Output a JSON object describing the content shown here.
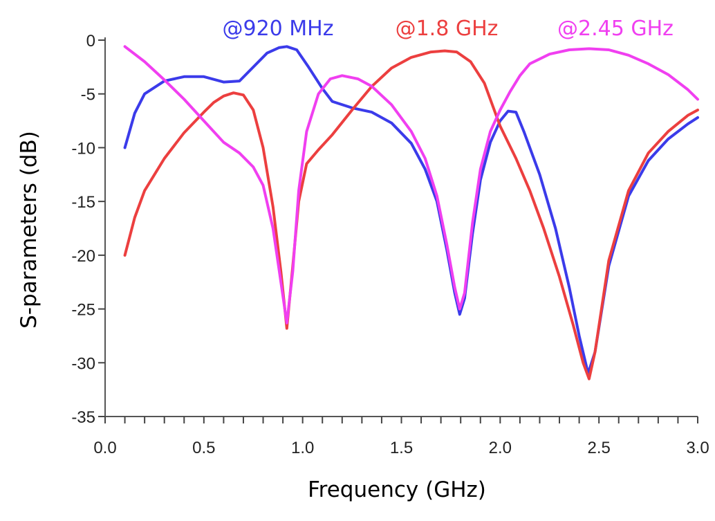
{
  "chart_data": {
    "type": "line",
    "title": "",
    "xlabel": "Frequency (GHz)",
    "ylabel": "S-parameters (dB)",
    "xlim": [
      0.0,
      3.0
    ],
    "ylim": [
      -35,
      0
    ],
    "xticks": [
      "0.0",
      "0.5",
      "1.0",
      "1.5",
      "2.0",
      "2.5",
      "3.0"
    ],
    "yticks": [
      "0",
      "-5",
      "-10",
      "-15",
      "-20",
      "-25",
      "-30",
      "-35"
    ],
    "grid": false,
    "legend_position": "top",
    "series": [
      {
        "name": "@920 MHz",
        "color": "#3b3bea",
        "points": [
          [
            0.1,
            -10.0
          ],
          [
            0.15,
            -6.8
          ],
          [
            0.2,
            -5.0
          ],
          [
            0.3,
            -3.8
          ],
          [
            0.4,
            -3.4
          ],
          [
            0.5,
            -3.4
          ],
          [
            0.6,
            -3.9
          ],
          [
            0.68,
            -3.8
          ],
          [
            0.75,
            -2.5
          ],
          [
            0.82,
            -1.2
          ],
          [
            0.88,
            -0.7
          ],
          [
            0.92,
            -0.6
          ],
          [
            0.97,
            -0.9
          ],
          [
            1.03,
            -2.5
          ],
          [
            1.1,
            -4.5
          ],
          [
            1.15,
            -5.7
          ],
          [
            1.25,
            -6.3
          ],
          [
            1.35,
            -6.7
          ],
          [
            1.45,
            -7.7
          ],
          [
            1.55,
            -9.6
          ],
          [
            1.62,
            -12.0
          ],
          [
            1.68,
            -15.0
          ],
          [
            1.73,
            -19.5
          ],
          [
            1.77,
            -23.5
          ],
          [
            1.795,
            -25.5
          ],
          [
            1.82,
            -24.0
          ],
          [
            1.86,
            -18.0
          ],
          [
            1.9,
            -13.0
          ],
          [
            1.95,
            -9.5
          ],
          [
            2.0,
            -7.5
          ],
          [
            2.04,
            -6.6
          ],
          [
            2.08,
            -6.7
          ],
          [
            2.12,
            -8.5
          ],
          [
            2.2,
            -12.5
          ],
          [
            2.28,
            -17.5
          ],
          [
            2.35,
            -23.0
          ],
          [
            2.4,
            -27.5
          ],
          [
            2.445,
            -31.0
          ],
          [
            2.48,
            -29.0
          ],
          [
            2.55,
            -21.0
          ],
          [
            2.65,
            -14.5
          ],
          [
            2.75,
            -11.2
          ],
          [
            2.85,
            -9.2
          ],
          [
            2.95,
            -7.8
          ],
          [
            3.0,
            -7.2
          ]
        ]
      },
      {
        "name": "@1.8 GHz",
        "color": "#ec3f3f",
        "points": [
          [
            0.1,
            -20.0
          ],
          [
            0.15,
            -16.5
          ],
          [
            0.2,
            -14.0
          ],
          [
            0.3,
            -11.0
          ],
          [
            0.4,
            -8.6
          ],
          [
            0.5,
            -6.7
          ],
          [
            0.55,
            -5.8
          ],
          [
            0.6,
            -5.2
          ],
          [
            0.65,
            -4.9
          ],
          [
            0.7,
            -5.1
          ],
          [
            0.75,
            -6.5
          ],
          [
            0.8,
            -10.0
          ],
          [
            0.85,
            -15.5
          ],
          [
            0.89,
            -21.5
          ],
          [
            0.92,
            -26.8
          ],
          [
            0.95,
            -21.0
          ],
          [
            0.98,
            -15.0
          ],
          [
            1.02,
            -11.5
          ],
          [
            1.08,
            -10.2
          ],
          [
            1.15,
            -8.8
          ],
          [
            1.25,
            -6.5
          ],
          [
            1.35,
            -4.3
          ],
          [
            1.45,
            -2.6
          ],
          [
            1.55,
            -1.6
          ],
          [
            1.65,
            -1.1
          ],
          [
            1.72,
            -1.0
          ],
          [
            1.78,
            -1.1
          ],
          [
            1.85,
            -2.0
          ],
          [
            1.92,
            -4.0
          ],
          [
            2.0,
            -8.0
          ],
          [
            2.08,
            -11.0
          ],
          [
            2.15,
            -14.0
          ],
          [
            2.22,
            -17.5
          ],
          [
            2.3,
            -22.0
          ],
          [
            2.37,
            -26.5
          ],
          [
            2.42,
            -30.0
          ],
          [
            2.45,
            -31.5
          ],
          [
            2.48,
            -29.0
          ],
          [
            2.55,
            -20.5
          ],
          [
            2.65,
            -14.0
          ],
          [
            2.75,
            -10.5
          ],
          [
            2.85,
            -8.5
          ],
          [
            2.95,
            -7.0
          ],
          [
            3.0,
            -6.5
          ]
        ]
      },
      {
        "name": "@2.45 GHz",
        "color": "#f03ff0",
        "points": [
          [
            0.1,
            -0.6
          ],
          [
            0.2,
            -2.0
          ],
          [
            0.3,
            -3.7
          ],
          [
            0.4,
            -5.5
          ],
          [
            0.5,
            -7.5
          ],
          [
            0.6,
            -9.5
          ],
          [
            0.68,
            -10.5
          ],
          [
            0.75,
            -11.8
          ],
          [
            0.8,
            -13.5
          ],
          [
            0.85,
            -17.5
          ],
          [
            0.89,
            -22.5
          ],
          [
            0.92,
            -26.3
          ],
          [
            0.95,
            -21.5
          ],
          [
            0.98,
            -14.0
          ],
          [
            1.02,
            -8.5
          ],
          [
            1.08,
            -5.0
          ],
          [
            1.14,
            -3.6
          ],
          [
            1.2,
            -3.3
          ],
          [
            1.28,
            -3.6
          ],
          [
            1.35,
            -4.3
          ],
          [
            1.45,
            -6.0
          ],
          [
            1.55,
            -8.5
          ],
          [
            1.62,
            -11.0
          ],
          [
            1.68,
            -14.5
          ],
          [
            1.73,
            -19.0
          ],
          [
            1.77,
            -23.0
          ],
          [
            1.795,
            -25.0
          ],
          [
            1.82,
            -23.5
          ],
          [
            1.86,
            -17.0
          ],
          [
            1.9,
            -12.0
          ],
          [
            1.95,
            -8.5
          ],
          [
            2.0,
            -6.5
          ],
          [
            2.05,
            -4.8
          ],
          [
            2.1,
            -3.3
          ],
          [
            2.15,
            -2.2
          ],
          [
            2.25,
            -1.3
          ],
          [
            2.35,
            -0.9
          ],
          [
            2.45,
            -0.8
          ],
          [
            2.55,
            -0.9
          ],
          [
            2.65,
            -1.4
          ],
          [
            2.75,
            -2.2
          ],
          [
            2.85,
            -3.2
          ],
          [
            2.95,
            -4.6
          ],
          [
            3.0,
            -5.5
          ]
        ]
      }
    ]
  }
}
